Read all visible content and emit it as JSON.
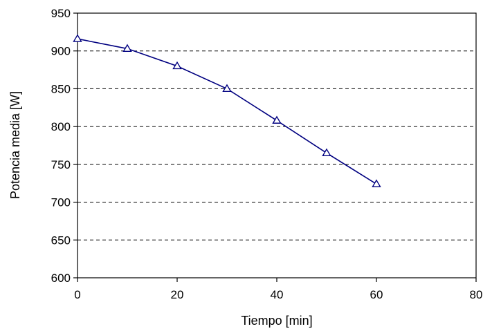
{
  "chart_data": {
    "type": "line",
    "xlabel": "Tiempo [min]",
    "ylabel": "Potencia media [W]",
    "xlim": [
      0,
      80
    ],
    "ylim": [
      600,
      950
    ],
    "xticks": [
      "0",
      "20",
      "40",
      "60",
      "80"
    ],
    "yticks": [
      "600",
      "650",
      "700",
      "750",
      "800",
      "850",
      "900",
      "950"
    ],
    "grid": "horizontal-dashed",
    "legend": "none",
    "marker": "open-triangle",
    "series": [
      {
        "color": "#000080",
        "x": [
          0,
          10,
          20,
          30,
          40,
          50,
          60
        ],
        "y": [
          916,
          903,
          880,
          850,
          808,
          765,
          724
        ]
      }
    ]
  }
}
